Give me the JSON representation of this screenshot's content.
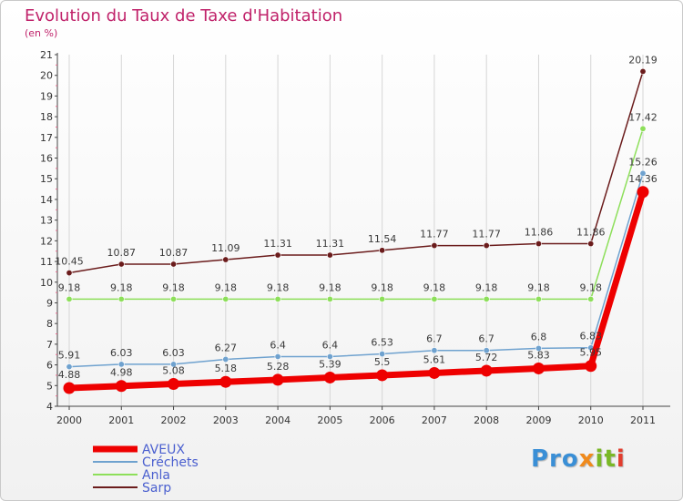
{
  "colors": {
    "title": "#c0226a",
    "aveux": "#ee0000",
    "crechets": "#6fa2cf",
    "anla": "#8ddf5a",
    "sarp": "#6b1c1c",
    "grid": "#d6d6d6",
    "axis": "#444444"
  },
  "chart_data": {
    "type": "line",
    "title": "Evolution du Taux de Taxe d'Habitation",
    "subtitle": "(en %)",
    "xlabel": "",
    "ylabel": "(en %)",
    "categories": [
      "2000",
      "2001",
      "2002",
      "2003",
      "2004",
      "2005",
      "2006",
      "2007",
      "2008",
      "2009",
      "2010",
      "2011"
    ],
    "yticks": [
      "4",
      "5",
      "6",
      "7",
      "8",
      "9",
      "10",
      "11",
      "12",
      "13",
      "14",
      "15",
      "16",
      "17",
      "18",
      "19",
      "20",
      "21"
    ],
    "ylim": [
      4,
      21
    ],
    "grid": "vertical",
    "legend_position": "bottom-left",
    "series": [
      {
        "name": "Sarp",
        "color": "#6b1c1c",
        "values": [
          10.45,
          10.87,
          10.87,
          11.09,
          11.31,
          11.31,
          11.54,
          11.77,
          11.77,
          11.86,
          11.86,
          20.19
        ],
        "labels": [
          "10.45",
          "10.87",
          "10.87",
          "11.09",
          "11.31",
          "11.31",
          "11.54",
          "11.77",
          "11.77",
          "11.86",
          "11.86",
          "20.19"
        ]
      },
      {
        "name": "Anla",
        "color": "#8ddf5a",
        "values": [
          9.18,
          9.18,
          9.18,
          9.18,
          9.18,
          9.18,
          9.18,
          9.18,
          9.18,
          9.18,
          9.18,
          17.42
        ],
        "labels": [
          "9.18",
          "9.18",
          "9.18",
          "9.18",
          "9.18",
          "9.18",
          "9.18",
          "9.18",
          "9.18",
          "9.18",
          "9.18",
          "17.42"
        ]
      },
      {
        "name": "Créchets",
        "color": "#6fa2cf",
        "values": [
          5.91,
          6.03,
          6.03,
          6.27,
          6.4,
          6.4,
          6.53,
          6.7,
          6.7,
          6.8,
          6.83,
          15.26
        ],
        "labels": [
          "5.91",
          "6.03",
          "6.03",
          "6.27",
          "6.4",
          "6.4",
          "6.53",
          "6.7",
          "6.7",
          "6.8",
          "6.83",
          "15.26"
        ]
      },
      {
        "name": "AVEUX",
        "color": "#ee0000",
        "values": [
          4.88,
          4.98,
          5.08,
          5.18,
          5.28,
          5.39,
          5.5,
          5.61,
          5.72,
          5.83,
          5.95,
          14.36
        ],
        "labels": [
          "4.88",
          "4.98",
          "5.08",
          "5.18",
          "5.28",
          "5.39",
          "5.5",
          "5.61",
          "5.72",
          "5.83",
          "5.95",
          "14.36"
        ]
      }
    ],
    "legend": [
      "AVEUX",
      "Créchets",
      "Anla",
      "Sarp"
    ]
  },
  "logo": {
    "p1": "Pro",
    "p2": "x",
    "p3": "it",
    "p4": "i"
  }
}
